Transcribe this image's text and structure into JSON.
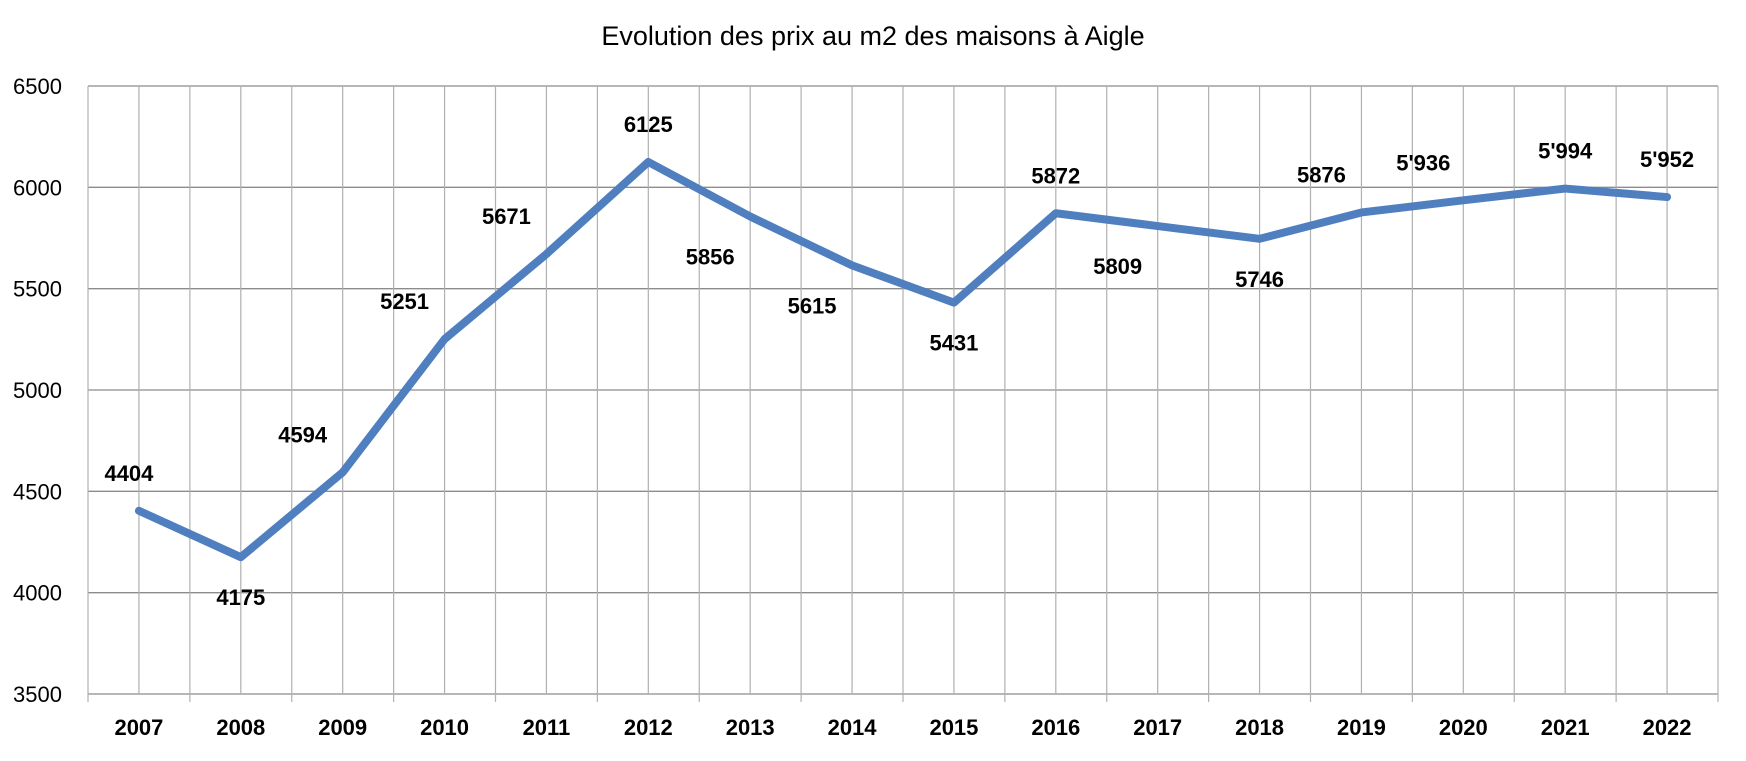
{
  "chart_data": {
    "type": "line",
    "title": "Evolution des prix au m2 des maisons à Aigle",
    "xlabel": "",
    "ylabel": "",
    "categories": [
      "2007",
      "2008",
      "2009",
      "2010",
      "2011",
      "2012",
      "2013",
      "2014",
      "2015",
      "2016",
      "2017",
      "2018",
      "2019",
      "2020",
      "2021",
      "2022"
    ],
    "series": [
      {
        "values": [
          4404,
          4175,
          4594,
          5251,
          5671,
          6125,
          5856,
          5615,
          5431,
          5872,
          5809,
          5746,
          5876,
          5936,
          5994,
          5952
        ],
        "labels": [
          "4404",
          "4175",
          "4594",
          "5251",
          "5671",
          "6125",
          "5856",
          "5615",
          "5431",
          "5872",
          "5809",
          "5746",
          "5876",
          "5'936",
          "5'994",
          "5'952"
        ],
        "color": "#4F7FBF"
      }
    ],
    "ylim": [
      3500,
      6500
    ],
    "yticks": [
      "3500",
      "4000",
      "4500",
      "5000",
      "5500",
      "6000",
      "6500"
    ],
    "grid": true,
    "legend": "none"
  }
}
